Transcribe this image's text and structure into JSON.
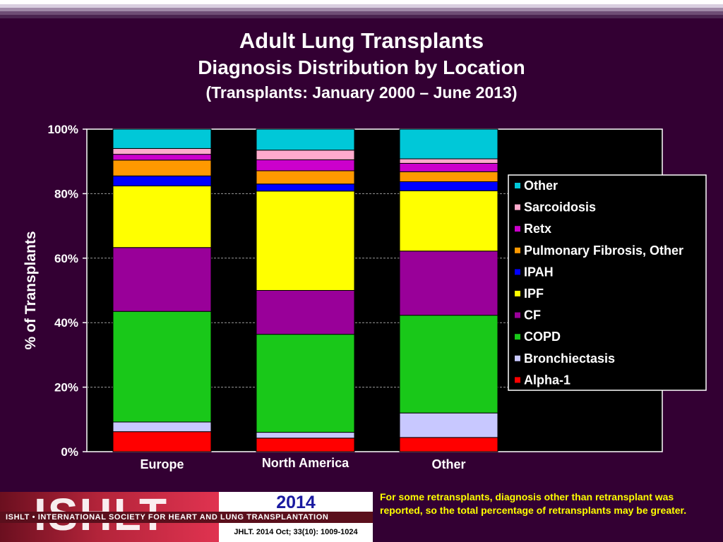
{
  "header": {
    "title": "Adult Lung Transplants",
    "subtitle": "Diagnosis Distribution by Location",
    "period": "(Transplants: January 2000 – June 2013)"
  },
  "chart_data": {
    "type": "bar",
    "stacked": true,
    "percent": true,
    "categories": [
      "Europe",
      "North America",
      "Other"
    ],
    "ylabel": "% of Transplants",
    "xlabel": "",
    "ylim": [
      0,
      100
    ],
    "yticks": [
      "0%",
      "20%",
      "40%",
      "60%",
      "80%",
      "100%"
    ],
    "grid": true,
    "legend_position": "right",
    "series": [
      {
        "name": "Alpha-1",
        "color": "#ff0000",
        "values": [
          6.2,
          4.2,
          4.4
        ]
      },
      {
        "name": "Bronchiectasis",
        "color": "#c8c8ff",
        "values": [
          3.0,
          1.8,
          7.6
        ]
      },
      {
        "name": "COPD",
        "color": "#19c819",
        "values": [
          34.3,
          30.4,
          30.3
        ]
      },
      {
        "name": "CF",
        "color": "#990099",
        "values": [
          19.8,
          13.6,
          19.9
        ]
      },
      {
        "name": "IPF",
        "color": "#ffff00",
        "values": [
          19.1,
          30.8,
          18.7
        ]
      },
      {
        "name": "IPAH",
        "color": "#0000ff",
        "values": [
          3.1,
          2.2,
          2.8
        ]
      },
      {
        "name": "Pulmonary Fibrosis, Other",
        "color": "#ff9900",
        "values": [
          4.9,
          4.1,
          3.1
        ]
      },
      {
        "name": "Retx",
        "color": "#cc00cc",
        "values": [
          1.8,
          3.4,
          2.6
        ]
      },
      {
        "name": "Sarcoidosis",
        "color": "#ffaacc",
        "values": [
          1.8,
          3.0,
          1.4
        ]
      },
      {
        "name": "Other",
        "color": "#00c8d8",
        "values": [
          6.0,
          6.5,
          9.2
        ]
      }
    ]
  },
  "footer": {
    "logo_text": "ISHLT",
    "society": "ISHLT • INTERNATIONAL SOCIETY FOR HEART AND LUNG TRANSPLANTATION",
    "year": "2014",
    "journal_ref": "JHLT. 2014 Oct; 33(10): 1009-1024",
    "note": "For some retransplants, diagnosis other than retransplant was reported, so the total percentage of retransplants may be greater."
  }
}
